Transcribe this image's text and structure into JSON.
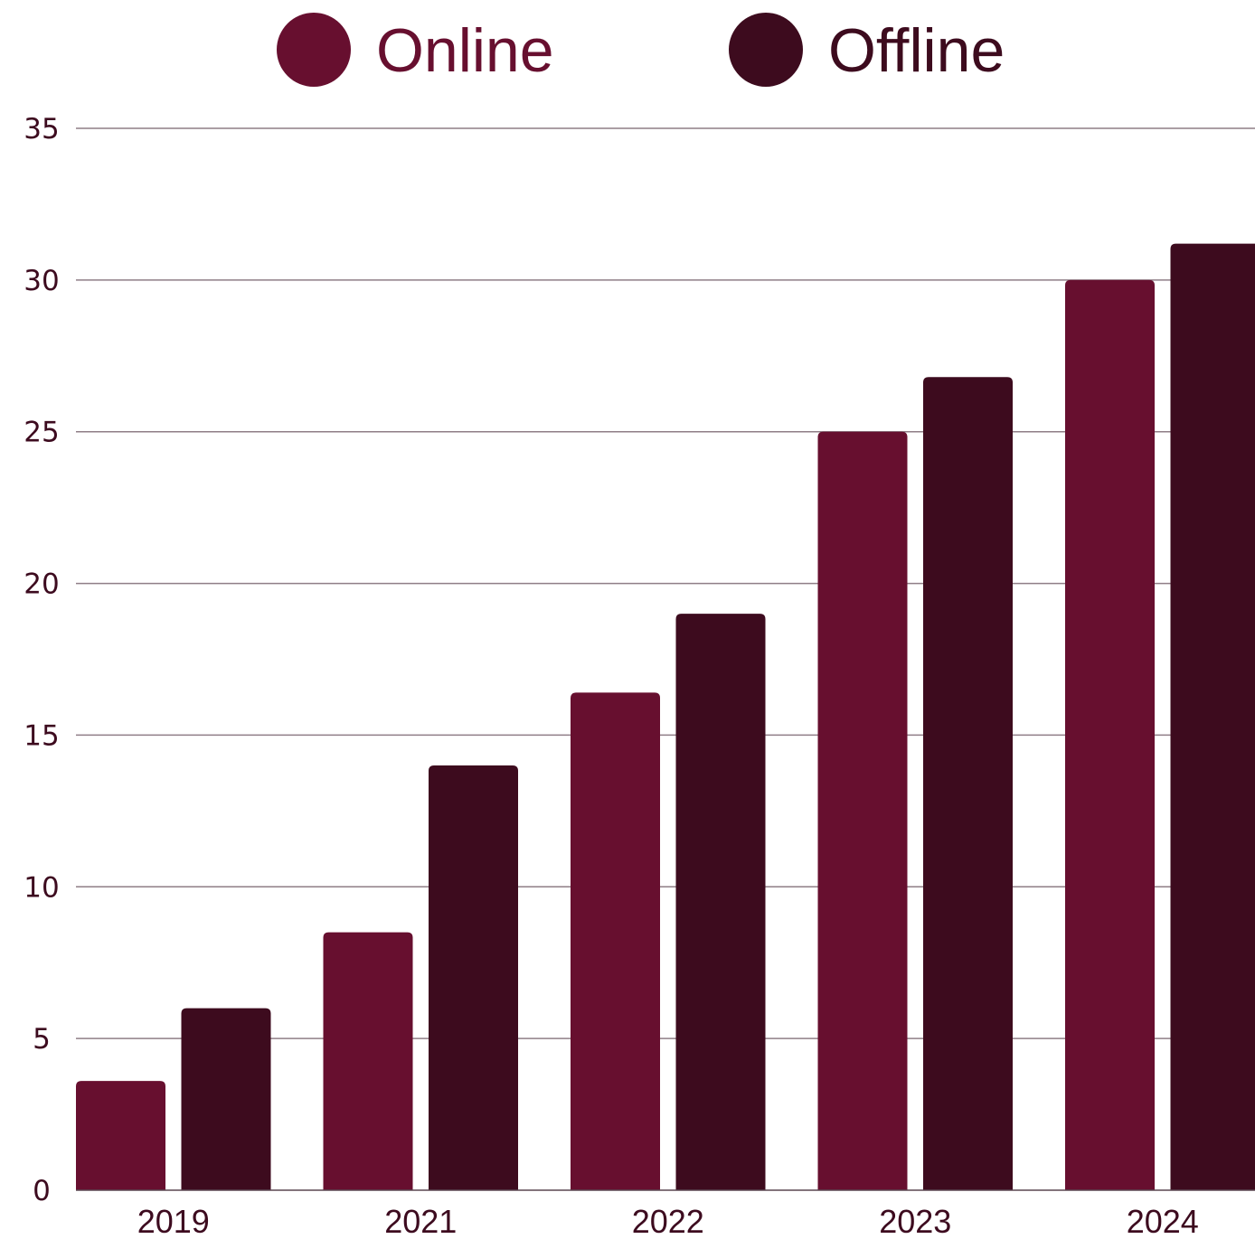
{
  "chart_data": {
    "type": "bar",
    "categories": [
      "2019",
      "2021",
      "2022",
      "2023",
      "2024"
    ],
    "series": [
      {
        "name": "Online",
        "color": "#670f2f",
        "values": [
          3.6,
          8.5,
          16.4,
          25.0,
          30.0
        ]
      },
      {
        "name": "Offline",
        "color": "#3d0b1e",
        "values": [
          6.0,
          14.0,
          19.0,
          26.8,
          31.2
        ]
      }
    ],
    "ylim": [
      0,
      35
    ],
    "yticks": [
      0,
      5,
      10,
      15,
      20,
      25,
      30,
      35
    ],
    "grid": true,
    "legend_position": "top-center",
    "title": "",
    "xlabel": "",
    "ylabel": ""
  }
}
